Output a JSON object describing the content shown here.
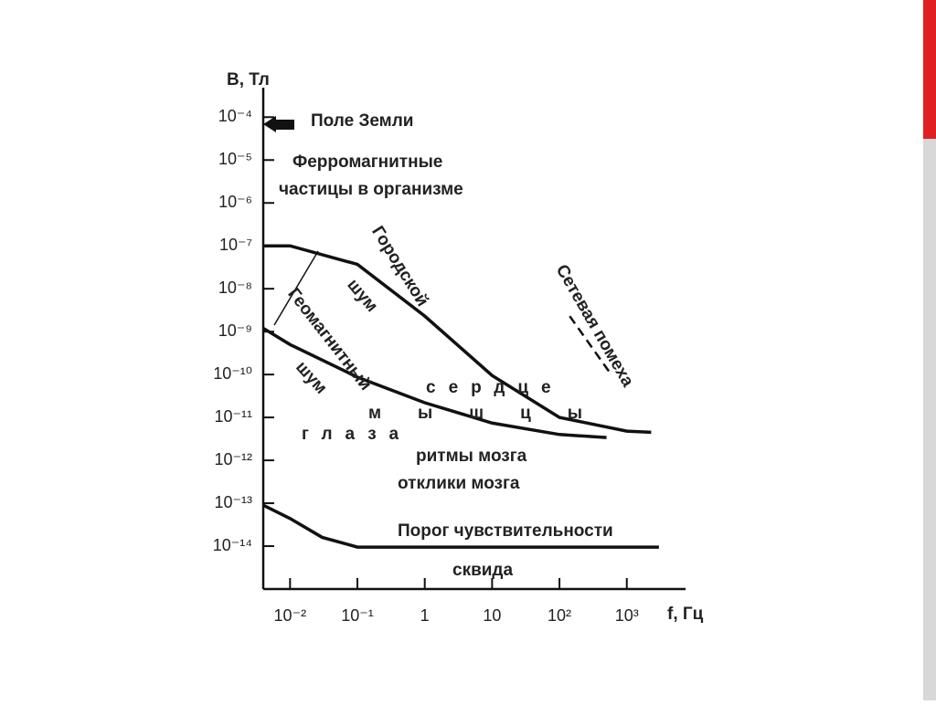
{
  "chart_data": {
    "type": "line",
    "x_label": "f, Гц",
    "y_label": "B, Тл",
    "xlog": true,
    "ylog": true,
    "xlim": [
      0.004,
      7000
    ],
    "ylim": [
      1e-15,
      0.0004
    ],
    "xticks": [
      {
        "value": 0.01,
        "label": "10⁻²"
      },
      {
        "value": 0.1,
        "label": "10⁻¹"
      },
      1,
      10,
      {
        "value": 100,
        "label": "10²"
      },
      {
        "value": 1000,
        "label": "10³"
      }
    ],
    "yticks": [
      {
        "value": 0.0001,
        "label": "10⁻⁴"
      },
      {
        "value": 1e-05,
        "label": "10⁻⁵"
      },
      {
        "value": 1e-06,
        "label": "10⁻⁶"
      },
      {
        "value": 1e-07,
        "label": "10⁻⁷"
      },
      {
        "value": 1e-08,
        "label": "10⁻⁸"
      },
      {
        "value": 1e-09,
        "label": "10⁻⁹"
      },
      {
        "value": 1e-10,
        "label": "10⁻¹⁰"
      },
      {
        "value": 1e-11,
        "label": "10⁻¹¹"
      },
      {
        "value": 1e-12,
        "label": "10⁻¹²"
      },
      {
        "value": 1e-13,
        "label": "10⁻¹³"
      },
      {
        "value": 1e-14,
        "label": "10⁻¹⁴"
      }
    ],
    "series": [
      {
        "color": "#111111",
        "x": [
          0.004,
          0.01,
          0.1,
          1,
          10,
          100,
          1000,
          2300
        ],
        "values": [
          1e-07,
          1e-07,
          3.7e-08,
          2.3e-09,
          9.5e-11,
          1e-11,
          4.8e-12,
          4.5e-12
        ]
      },
      {
        "color": "#111111",
        "x": [
          0.004,
          0.01,
          0.1,
          1,
          10,
          100,
          500
        ],
        "values": [
          1.2e-09,
          5e-10,
          8.7e-11,
          2.2e-11,
          7.4e-12,
          4e-12,
          3.4e-12
        ]
      },
      {
        "color": "#111111",
        "x": [
          0.004,
          0.01,
          0.03,
          0.1,
          1,
          10,
          100,
          1000,
          3000
        ],
        "values": [
          9e-14,
          4.4e-14,
          1.6e-14,
          9.5e-15,
          9.5e-15,
          9.5e-15,
          9.5e-15,
          9.5e-15,
          9.5e-15
        ]
      },
      {
        "color": "#111111",
        "dash": true,
        "x": [
          142,
          600
        ],
        "values": [
          2.3e-09,
          9.5e-11
        ]
      }
    ],
    "annotations": [
      "Поле Земли",
      "Ферромагнитные",
      "частицы в организме",
      "Городской",
      "шум",
      "Сетевая помеха",
      "Геомагнитный",
      "шум",
      "сердце",
      "мышцы",
      "глаза",
      "ритмы мозга",
      "отклики мозга",
      "Порог чувствительности",
      "сквида"
    ]
  }
}
